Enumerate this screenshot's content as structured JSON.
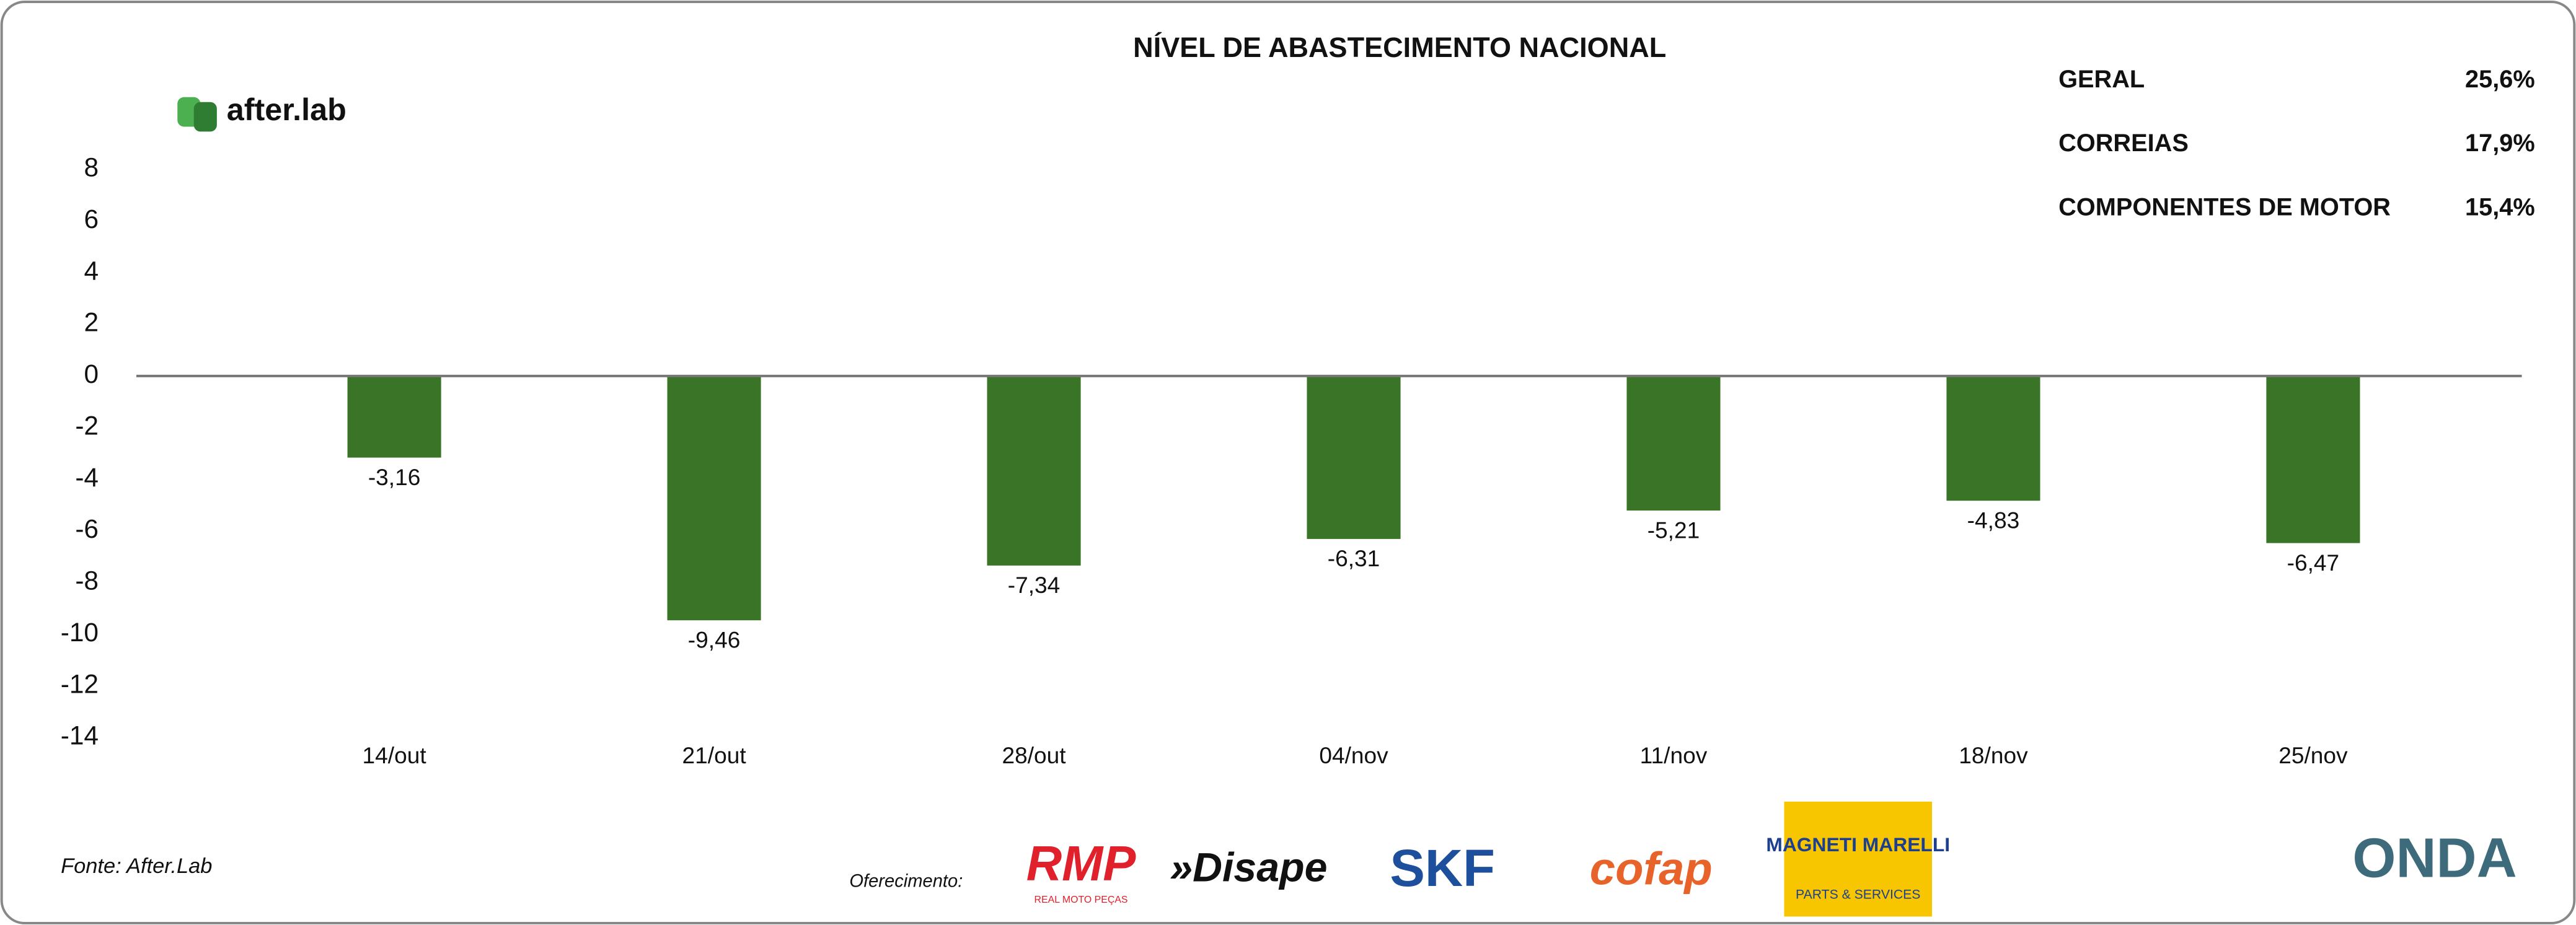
{
  "chart_data": {
    "type": "bar",
    "title": "NÍVEL DE ABASTECIMENTO NACIONAL",
    "categories": [
      "14/out",
      "21/out",
      "28/out",
      "04/nov",
      "11/nov",
      "18/nov",
      "25/nov"
    ],
    "values": [
      -3.16,
      -9.46,
      -7.34,
      -6.31,
      -5.21,
      -4.83,
      -6.47
    ],
    "value_labels": [
      "-3,16",
      "-9,46",
      "-7,34",
      "-6,31",
      "-5,21",
      "-4,83",
      "-6,47"
    ],
    "color": "#3a7426",
    "ylim": [
      -14,
      8
    ],
    "yticks": [
      8,
      6,
      4,
      2,
      0,
      -2,
      -4,
      -6,
      -8,
      -10,
      -12,
      -14
    ],
    "grid": false
  },
  "brand": "after.lab",
  "summary": [
    {
      "label": "GERAL",
      "value": "25,6%"
    },
    {
      "label": "CORREIAS",
      "value": "17,9%"
    },
    {
      "label": "COMPONENTES DE MOTOR",
      "value": "15,4%"
    }
  ],
  "footer": {
    "source": "Fonte: After.Lab",
    "sponsor_intro": "Oferecimento:",
    "sponsors": [
      "RMP",
      "REAL MOTO PEÇAS",
      "»Disape",
      "SKF",
      "cofap",
      "MAGNETI MARELLI",
      "PARTS & SERVICES",
      "ONDA"
    ]
  }
}
